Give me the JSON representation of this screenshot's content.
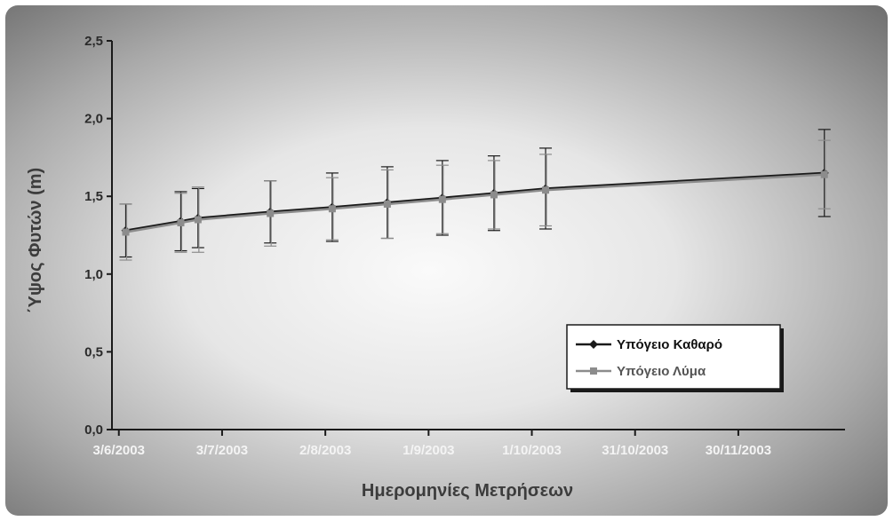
{
  "chart_data": {
    "type": "line",
    "title": "",
    "xlabel": "Ημερομηνίες Μετρήσεων",
    "ylabel": "΄Υψος Φυτών (m)",
    "ylim": [
      0,
      2.5
    ],
    "yticks": [
      "0,0",
      "0,5",
      "1,0",
      "1,5",
      "2,0",
      "2,5"
    ],
    "xticks": [
      {
        "date": "2003-06-03",
        "label": "3/6/2003"
      },
      {
        "date": "2003-07-03",
        "label": "3/7/2003"
      },
      {
        "date": "2003-08-02",
        "label": "2/8/2003"
      },
      {
        "date": "2003-09-01",
        "label": "1/9/2003"
      },
      {
        "date": "2003-10-01",
        "label": "1/10/2003"
      },
      {
        "date": "2003-10-31",
        "label": "31/10/2003"
      },
      {
        "date": "2003-11-30",
        "label": "30/11/2003"
      }
    ],
    "xlim": [
      "2003-06-01",
      "2003-12-31"
    ],
    "grid": false,
    "legend": "bottom-right",
    "series": [
      {
        "name": "Υπόγειο Καθαρό",
        "color": "#1a1a1a",
        "marker": "diamond",
        "x": [
          "2003-06-05",
          "2003-06-21",
          "2003-06-26",
          "2003-07-17",
          "2003-08-04",
          "2003-08-20",
          "2003-09-05",
          "2003-09-20",
          "2003-10-05",
          "2003-12-25"
        ],
        "y": [
          1.28,
          1.34,
          1.36,
          1.4,
          1.43,
          1.46,
          1.49,
          1.52,
          1.55,
          1.65
        ],
        "err": [
          0.17,
          0.19,
          0.19,
          0.2,
          0.22,
          0.23,
          0.24,
          0.24,
          0.26,
          0.28
        ]
      },
      {
        "name": "Υπόγειο Λύμα",
        "color": "#8c8c8c",
        "marker": "square",
        "x": [
          "2003-06-05",
          "2003-06-21",
          "2003-06-26",
          "2003-07-17",
          "2003-08-04",
          "2003-08-20",
          "2003-09-05",
          "2003-09-20",
          "2003-10-05",
          "2003-12-25"
        ],
        "y": [
          1.27,
          1.33,
          1.35,
          1.39,
          1.42,
          1.45,
          1.48,
          1.51,
          1.54,
          1.64
        ],
        "err": [
          0.18,
          0.19,
          0.21,
          0.21,
          0.2,
          0.22,
          0.22,
          0.22,
          0.23,
          0.22
        ]
      }
    ]
  }
}
